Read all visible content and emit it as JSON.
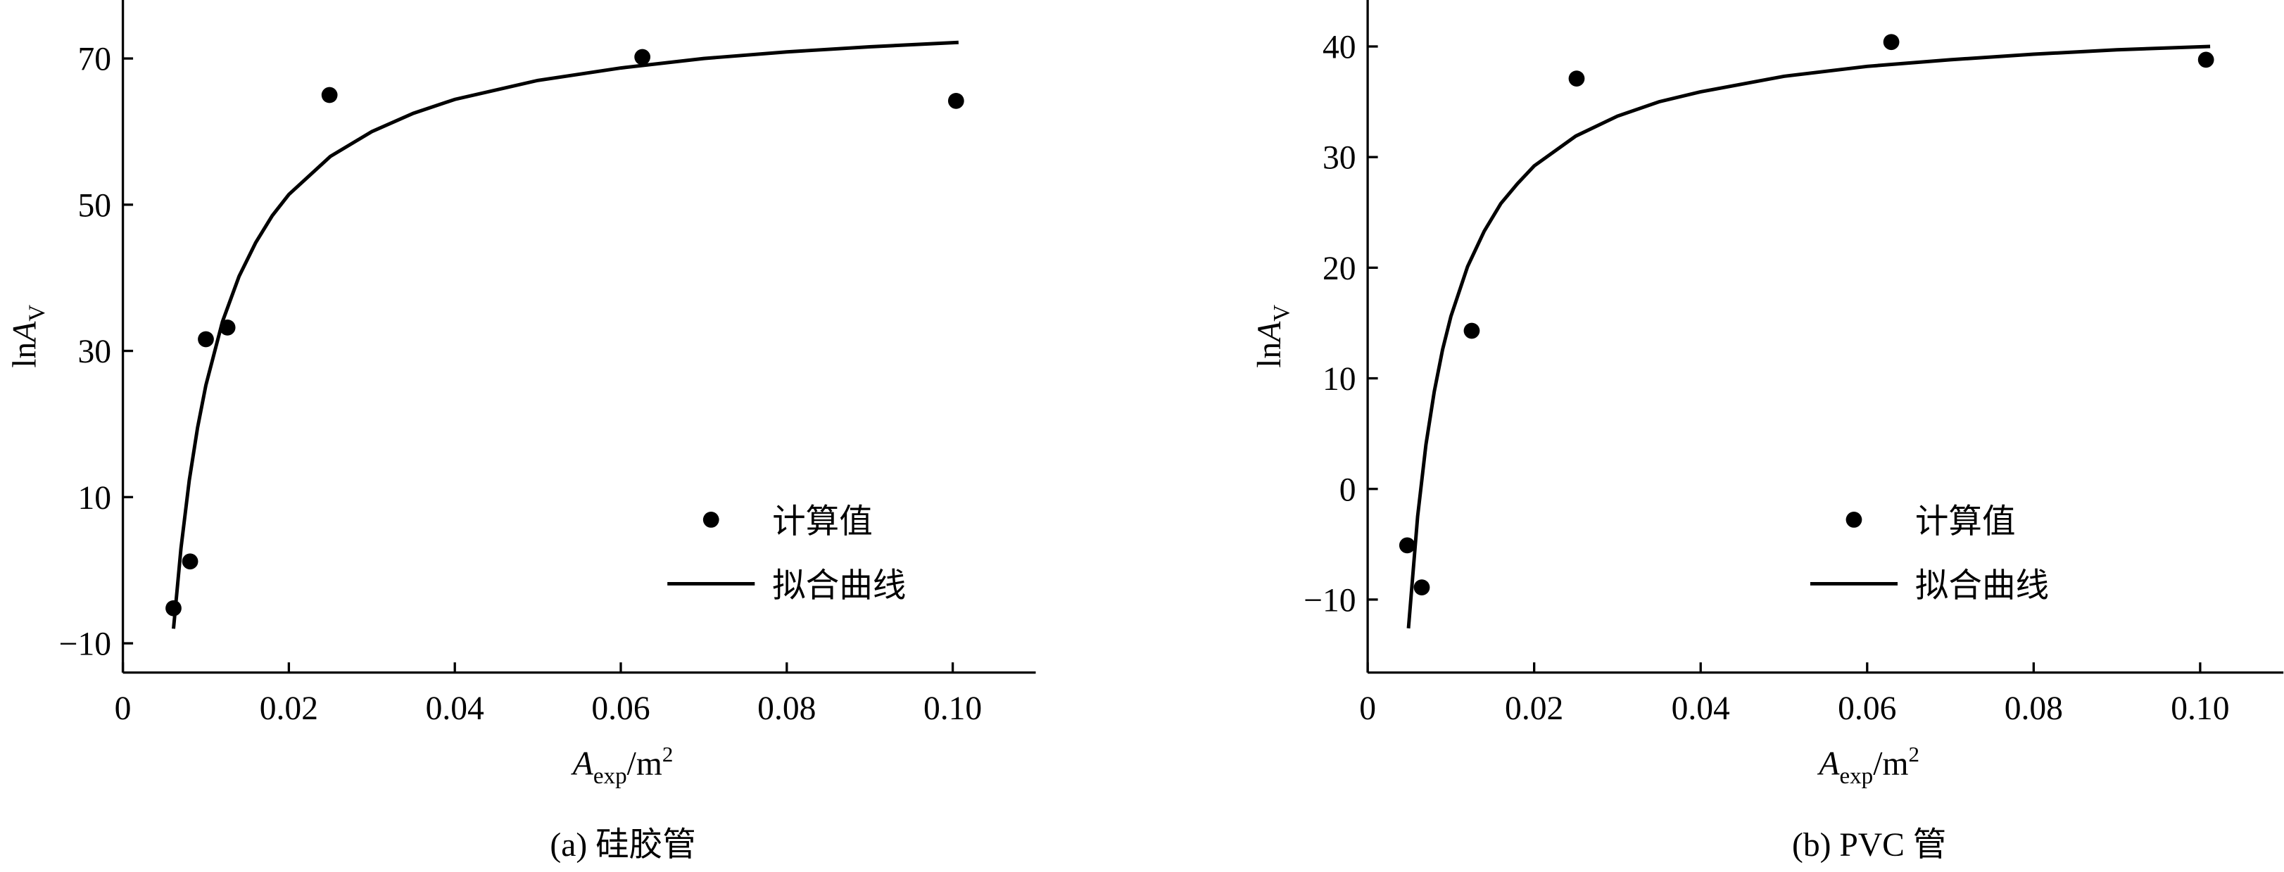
{
  "chart_data": [
    {
      "type": "scatter",
      "caption": "(a)  硅胶管",
      "ylabel": {
        "main": "ln",
        "var": "A",
        "sub": "V"
      },
      "xlabel": {
        "var": "A",
        "sub": "exp",
        "unit": "/m",
        "sup": "2"
      },
      "xlim": [
        0,
        0.11
      ],
      "ylim": [
        -14,
        78
      ],
      "xticks": [
        0,
        0.02,
        0.04,
        0.06,
        0.08,
        {
          "value": 0.1,
          "label": "0.10"
        }
      ],
      "yticks": [
        {
          "value": -10,
          "label": "−10"
        },
        10,
        30,
        50,
        70
      ],
      "legend": "lower right",
      "series": [
        {
          "name": "计算值",
          "kind": "points",
          "color": "#000000",
          "x": [
            0.0061,
            0.0081,
            0.01,
            0.0126,
            0.0249,
            0.0626,
            0.1004
          ],
          "values": [
            -5.2,
            1.2,
            31.6,
            33.2,
            65,
            70.2,
            64.2
          ]
        },
        {
          "name": "拟合曲线",
          "kind": "line",
          "color": "#000000",
          "x": [
            0.0061,
            0.007,
            0.008,
            0.009,
            0.01,
            0.012,
            0.014,
            0.016,
            0.018,
            0.02,
            0.025,
            0.03,
            0.035,
            0.04,
            0.05,
            0.06,
            0.07,
            0.08,
            0.09,
            0.1007
          ],
          "values": [
            -8.0,
            3.0,
            12.3,
            19.5,
            25.3,
            34.0,
            40.2,
            44.8,
            48.5,
            51.4,
            56.6,
            60.0,
            62.5,
            64.4,
            67.0,
            68.7,
            70.0,
            70.9,
            71.6,
            72.2
          ]
        }
      ]
    },
    {
      "type": "scatter",
      "caption": "(b)  PVC 管",
      "ylabel": {
        "main": "ln",
        "var": "A",
        "sub": "V"
      },
      "xlabel": {
        "var": "A",
        "sub": "exp",
        "unit": "/m",
        "sup": "2"
      },
      "xlim": [
        0,
        0.11
      ],
      "ylim": [
        -16.6,
        44.2
      ],
      "xticks": [
        0,
        0.02,
        0.04,
        0.06,
        0.08,
        {
          "value": 0.1,
          "label": "0.10"
        }
      ],
      "yticks": [
        {
          "value": -10,
          "label": "−10"
        },
        0,
        10,
        20,
        30,
        40
      ],
      "legend": "lower right",
      "series": [
        {
          "name": "计算值",
          "kind": "points",
          "color": "#000000",
          "x": [
            0.00475,
            0.0065,
            0.0125,
            0.0251,
            0.0629,
            0.1007
          ],
          "values": [
            -5.1,
            -8.9,
            14.3,
            37.1,
            40.4,
            38.8
          ]
        },
        {
          "name": "拟合曲线",
          "kind": "line",
          "color": "#000000",
          "x": [
            0.0049,
            0.006,
            0.007,
            0.008,
            0.009,
            0.01,
            0.012,
            0.014,
            0.016,
            0.018,
            0.02,
            0.025,
            0.03,
            0.035,
            0.04,
            0.05,
            0.06,
            0.07,
            0.08,
            0.09,
            0.1012
          ],
          "values": [
            -12.6,
            -2.5,
            4.0,
            8.8,
            12.6,
            15.6,
            20.1,
            23.3,
            25.8,
            27.6,
            29.2,
            31.9,
            33.7,
            35.0,
            35.9,
            37.3,
            38.2,
            38.8,
            39.3,
            39.7,
            40.0
          ]
        }
      ]
    }
  ]
}
